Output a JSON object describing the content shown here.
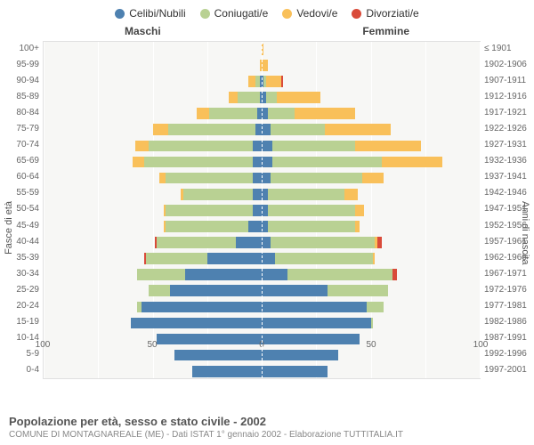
{
  "type": "population-pyramid",
  "legend": [
    {
      "label": "Celibi/Nubili",
      "color": "#4e81b0"
    },
    {
      "label": "Coniugati/e",
      "color": "#b9d193"
    },
    {
      "label": "Vedovi/e",
      "color": "#f9c05a"
    },
    {
      "label": "Divorziati/e",
      "color": "#d94b3a"
    }
  ],
  "headers": {
    "male": "Maschi",
    "female": "Femmine"
  },
  "axis_titles": {
    "left": "Fasce di età",
    "right": "Anni di nascita"
  },
  "x_axis": {
    "min": -100,
    "max": 100,
    "ticks": [
      100,
      50,
      0,
      50,
      100
    ],
    "tick_positions_pct": [
      0,
      25,
      50,
      75,
      100
    ]
  },
  "grid_positions_pct": [
    0,
    12.5,
    25,
    37.5,
    50,
    62.5,
    75,
    87.5,
    100
  ],
  "colors": {
    "celibi": "#4e81b0",
    "coniugati": "#b9d193",
    "vedovi": "#f9c05a",
    "divorziati": "#d94b3a",
    "grid_bg": "#f7f7f5",
    "gridline": "#ffffff",
    "text": "#666666"
  },
  "rows": [
    {
      "age": "100+",
      "birth": "≤ 1901",
      "m": {
        "cel": 0,
        "con": 0,
        "ved": 0,
        "div": 0
      },
      "f": {
        "cel": 0,
        "con": 0,
        "ved": 1,
        "div": 0
      }
    },
    {
      "age": "95-99",
      "birth": "1902-1906",
      "m": {
        "cel": 0,
        "con": 0,
        "ved": 1,
        "div": 0
      },
      "f": {
        "cel": 0,
        "con": 0,
        "ved": 3,
        "div": 0
      }
    },
    {
      "age": "90-94",
      "birth": "1907-1911",
      "m": {
        "cel": 1,
        "con": 2,
        "ved": 3,
        "div": 0
      },
      "f": {
        "cel": 1,
        "con": 1,
        "ved": 7,
        "div": 1
      }
    },
    {
      "age": "85-89",
      "birth": "1912-1916",
      "m": {
        "cel": 1,
        "con": 10,
        "ved": 4,
        "div": 0
      },
      "f": {
        "cel": 2,
        "con": 5,
        "ved": 20,
        "div": 0
      }
    },
    {
      "age": "80-84",
      "birth": "1917-1921",
      "m": {
        "cel": 2,
        "con": 22,
        "ved": 6,
        "div": 0
      },
      "f": {
        "cel": 3,
        "con": 12,
        "ved": 28,
        "div": 0
      }
    },
    {
      "age": "75-79",
      "birth": "1922-1926",
      "m": {
        "cel": 3,
        "con": 40,
        "ved": 7,
        "div": 0
      },
      "f": {
        "cel": 4,
        "con": 25,
        "ved": 30,
        "div": 0
      }
    },
    {
      "age": "70-74",
      "birth": "1927-1931",
      "m": {
        "cel": 4,
        "con": 48,
        "ved": 6,
        "div": 0
      },
      "f": {
        "cel": 5,
        "con": 38,
        "ved": 30,
        "div": 0
      }
    },
    {
      "age": "65-69",
      "birth": "1932-1936",
      "m": {
        "cel": 4,
        "con": 50,
        "ved": 5,
        "div": 0
      },
      "f": {
        "cel": 5,
        "con": 50,
        "ved": 28,
        "div": 0
      }
    },
    {
      "age": "60-64",
      "birth": "1937-1941",
      "m": {
        "cel": 4,
        "con": 40,
        "ved": 3,
        "div": 0
      },
      "f": {
        "cel": 4,
        "con": 42,
        "ved": 10,
        "div": 0
      }
    },
    {
      "age": "55-59",
      "birth": "1942-1946",
      "m": {
        "cel": 4,
        "con": 32,
        "ved": 1,
        "div": 0
      },
      "f": {
        "cel": 3,
        "con": 35,
        "ved": 6,
        "div": 0
      }
    },
    {
      "age": "50-54",
      "birth": "1947-1951",
      "m": {
        "cel": 4,
        "con": 40,
        "ved": 1,
        "div": 0
      },
      "f": {
        "cel": 3,
        "con": 40,
        "ved": 4,
        "div": 0
      }
    },
    {
      "age": "45-49",
      "birth": "1952-1956",
      "m": {
        "cel": 6,
        "con": 38,
        "ved": 1,
        "div": 0
      },
      "f": {
        "cel": 3,
        "con": 40,
        "ved": 2,
        "div": 0
      }
    },
    {
      "age": "40-44",
      "birth": "1957-1961",
      "m": {
        "cel": 12,
        "con": 36,
        "ved": 0,
        "div": 1
      },
      "f": {
        "cel": 4,
        "con": 48,
        "ved": 1,
        "div": 2
      }
    },
    {
      "age": "35-39",
      "birth": "1962-1966",
      "m": {
        "cel": 25,
        "con": 28,
        "ved": 0,
        "div": 1
      },
      "f": {
        "cel": 6,
        "con": 45,
        "ved": 1,
        "div": 0
      }
    },
    {
      "age": "30-34",
      "birth": "1967-1971",
      "m": {
        "cel": 35,
        "con": 22,
        "ved": 0,
        "div": 0
      },
      "f": {
        "cel": 12,
        "con": 48,
        "ved": 0,
        "div": 2
      }
    },
    {
      "age": "25-29",
      "birth": "1972-1976",
      "m": {
        "cel": 42,
        "con": 10,
        "ved": 0,
        "div": 0
      },
      "f": {
        "cel": 30,
        "con": 28,
        "ved": 0,
        "div": 0
      }
    },
    {
      "age": "20-24",
      "birth": "1977-1981",
      "m": {
        "cel": 55,
        "con": 2,
        "ved": 0,
        "div": 0
      },
      "f": {
        "cel": 48,
        "con": 8,
        "ved": 0,
        "div": 0
      }
    },
    {
      "age": "15-19",
      "birth": "1982-1986",
      "m": {
        "cel": 60,
        "con": 0,
        "ved": 0,
        "div": 0
      },
      "f": {
        "cel": 50,
        "con": 1,
        "ved": 0,
        "div": 0
      }
    },
    {
      "age": "10-14",
      "birth": "1987-1991",
      "m": {
        "cel": 48,
        "con": 0,
        "ved": 0,
        "div": 0
      },
      "f": {
        "cel": 45,
        "con": 0,
        "ved": 0,
        "div": 0
      }
    },
    {
      "age": "5-9",
      "birth": "1992-1996",
      "m": {
        "cel": 40,
        "con": 0,
        "ved": 0,
        "div": 0
      },
      "f": {
        "cel": 35,
        "con": 0,
        "ved": 0,
        "div": 0
      }
    },
    {
      "age": "0-4",
      "birth": "1997-2001",
      "m": {
        "cel": 32,
        "con": 0,
        "ved": 0,
        "div": 0
      },
      "f": {
        "cel": 30,
        "con": 0,
        "ved": 0,
        "div": 0
      }
    }
  ],
  "footer": {
    "title": "Popolazione per età, sesso e stato civile - 2002",
    "subtitle": "COMUNE DI MONTAGNAREALE (ME) - Dati ISTAT 1° gennaio 2002 - Elaborazione TUTTITALIA.IT"
  },
  "scale_max": 100
}
